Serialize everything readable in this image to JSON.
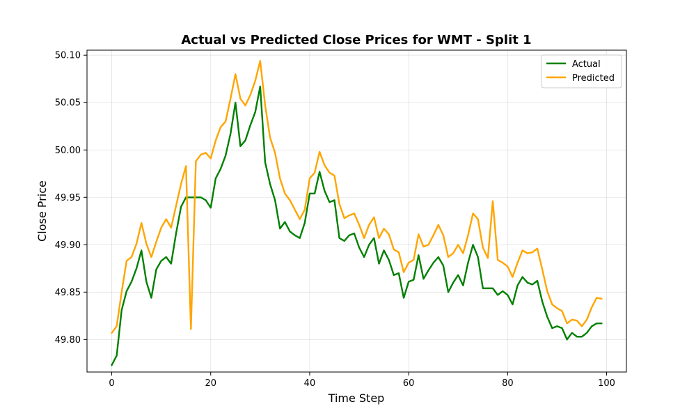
{
  "chart_data": {
    "type": "line",
    "title": "Actual vs Predicted Close Prices for WMT - Split 1",
    "xlabel": "Time Step",
    "ylabel": "Close Price",
    "xlim": [
      -5,
      104
    ],
    "ylim": [
      49.7657,
      50.1053
    ],
    "xticks": [
      0,
      20,
      40,
      60,
      80,
      100
    ],
    "yticks": [
      49.8,
      49.85,
      49.9,
      49.95,
      50.0,
      50.05,
      50.1
    ],
    "ytick_labels": [
      "49.80",
      "49.85",
      "49.90",
      "49.95",
      "50.00",
      "50.05",
      "50.10"
    ],
    "grid": true,
    "legend_position": "top-right",
    "series": [
      {
        "name": "Actual",
        "color": "#008000",
        "values": [
          49.773,
          49.783,
          49.831,
          49.851,
          49.861,
          49.875,
          49.894,
          49.861,
          49.844,
          49.874,
          49.883,
          49.887,
          49.88,
          49.912,
          49.94,
          49.95,
          49.95,
          49.95,
          49.95,
          49.947,
          49.939,
          49.97,
          49.98,
          49.994,
          50.017,
          50.05,
          50.004,
          50.01,
          50.026,
          50.04,
          50.067,
          49.987,
          49.964,
          49.947,
          49.917,
          49.924,
          49.914,
          49.91,
          49.907,
          49.923,
          49.954,
          49.954,
          49.977,
          49.957,
          49.945,
          49.947,
          49.907,
          49.904,
          49.91,
          49.912,
          49.897,
          49.887,
          49.9,
          49.907,
          49.88,
          49.894,
          49.884,
          49.868,
          49.87,
          49.844,
          49.861,
          49.863,
          49.889,
          49.864,
          49.873,
          49.881,
          49.887,
          49.878,
          49.85,
          49.86,
          49.868,
          49.857,
          49.881,
          49.9,
          49.887,
          49.854,
          49.854,
          49.854,
          49.847,
          49.851,
          49.847,
          49.837,
          49.857,
          49.866,
          49.86,
          49.858,
          49.862,
          49.84,
          49.824,
          49.812,
          49.814,
          49.812,
          49.8,
          49.807,
          49.803,
          49.803,
          49.807,
          49.814,
          49.817,
          49.817
        ]
      },
      {
        "name": "Predicted",
        "color": "#ffa500",
        "values": [
          49.807,
          49.814,
          49.85,
          49.883,
          49.887,
          49.901,
          49.923,
          49.901,
          49.887,
          49.903,
          49.918,
          49.927,
          49.918,
          49.941,
          49.964,
          49.983,
          49.811,
          49.988,
          49.995,
          49.997,
          49.991,
          50.01,
          50.024,
          50.03,
          50.054,
          50.08,
          50.054,
          50.047,
          50.058,
          50.073,
          50.094,
          50.047,
          50.013,
          49.997,
          49.97,
          49.954,
          49.947,
          49.937,
          49.927,
          49.937,
          49.97,
          49.976,
          49.998,
          49.984,
          49.976,
          49.973,
          49.943,
          49.928,
          49.931,
          49.933,
          49.921,
          49.907,
          49.921,
          49.929,
          49.907,
          49.917,
          49.911,
          49.895,
          49.892,
          49.871,
          49.881,
          49.884,
          49.911,
          49.898,
          49.9,
          49.91,
          49.921,
          49.91,
          49.887,
          49.891,
          49.9,
          49.891,
          49.91,
          49.933,
          49.927,
          49.897,
          49.886,
          49.946,
          49.884,
          49.881,
          49.877,
          49.866,
          49.881,
          49.894,
          49.891,
          49.892,
          49.896,
          49.874,
          49.851,
          49.837,
          49.833,
          49.83,
          49.817,
          49.821,
          49.82,
          49.814,
          49.821,
          49.834,
          49.844,
          49.843
        ]
      }
    ]
  }
}
